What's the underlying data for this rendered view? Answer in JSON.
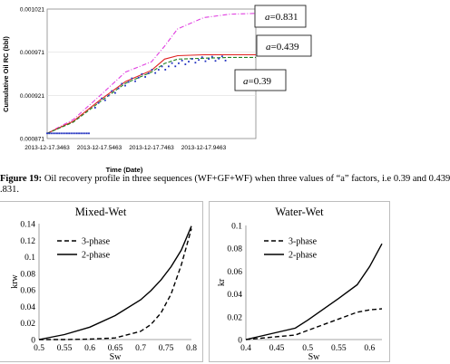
{
  "top_chart": {
    "ylabel": "Cumulative Oil RC (bbl)",
    "xlabel": "Time (Date)",
    "y_ticks": [
      "0.000871",
      "0.000921",
      "0.000971",
      "0.001021"
    ],
    "x_ticks": [
      "2013-12-17.3463",
      "2013-12-17.5463",
      "2013-12-17.7463",
      "2013-12-17.9463"
    ],
    "annotations": [
      {
        "prefix": "a",
        "value": "=0.831"
      },
      {
        "prefix": "a",
        "value": "=0.439"
      },
      {
        "prefix": "a",
        "value": "=0.39"
      }
    ],
    "colors": {
      "a0831": "#e040e0",
      "a0439": "#e02020",
      "a039": "#208020",
      "data": "#2030c0"
    }
  },
  "caption": {
    "label": "Figure 19:",
    "line1": " Oil recovery profile in three sequences (WF+GF+WF) when three values of “a” factors, i.e 0.39 and 0.439",
    "line2": ".831."
  },
  "chart_data": [
    {
      "type": "line",
      "title": "",
      "xlabel": "Time (Date)",
      "ylabel": "Cumulative Oil RC (bbl)",
      "x": [
        0.3463,
        0.4463,
        0.5463,
        0.6463,
        0.7463,
        0.7963,
        0.8463,
        0.9463,
        1.0463,
        1.1463
      ],
      "ylim": [
        0.000871,
        0.001021
      ],
      "series": [
        {
          "name": "a=0.831",
          "values": [
            0.000877,
            0.000893,
            0.00092,
            0.000948,
            0.00096,
            0.000978,
            0.000998,
            0.001011,
            0.001015,
            0.001016
          ]
        },
        {
          "name": "a=0.439",
          "values": [
            0.000877,
            0.000891,
            0.000915,
            0.000937,
            0.00095,
            0.000963,
            0.000967,
            0.000968,
            0.000968,
            0.000968
          ]
        },
        {
          "name": "a=0.39",
          "values": [
            0.000877,
            0.00089,
            0.000913,
            0.000935,
            0.000948,
            0.000958,
            0.000963,
            0.000964,
            0.000965,
            0.000965
          ]
        }
      ]
    },
    {
      "type": "line",
      "title": "Mixed-Wet",
      "xlabel": "Sw",
      "ylabel": "krw",
      "x": [
        0.5,
        0.55,
        0.6,
        0.65,
        0.7,
        0.72,
        0.74,
        0.76,
        0.78,
        0.8
      ],
      "xlim": [
        0.5,
        0.8
      ],
      "ylim": [
        0,
        0.14
      ],
      "x_ticks": [
        "0.5",
        "0.55",
        "0.6",
        "0.65",
        "0.7",
        "0.75",
        "0.8"
      ],
      "y_ticks": [
        "0",
        "0.02",
        "0.04",
        "0.06",
        "0.08",
        "0.1",
        "0.12",
        "0.14"
      ],
      "series": [
        {
          "name": "3-phase",
          "values": [
            0,
            0,
            0.0005,
            0.002,
            0.01,
            0.018,
            0.032,
            0.055,
            0.09,
            0.134
          ]
        },
        {
          "name": "2-phase",
          "values": [
            0,
            0.006,
            0.015,
            0.029,
            0.048,
            0.059,
            0.072,
            0.088,
            0.108,
            0.137
          ]
        }
      ],
      "legend": "top-left"
    },
    {
      "type": "line",
      "title": "Water-Wet",
      "xlabel": "Sw",
      "ylabel": "kr",
      "x": [
        0.4,
        0.48,
        0.5,
        0.55,
        0.58,
        0.6,
        0.62
      ],
      "xlim": [
        0.4,
        0.62
      ],
      "ylim": [
        0,
        0.1
      ],
      "x_ticks": [
        "0.4",
        "0.45",
        "0.5",
        "0.55",
        "0.6"
      ],
      "y_ticks": [
        "0",
        "0.02",
        "0.04",
        "0.06",
        "0.08",
        "0.1"
      ],
      "series": [
        {
          "name": "3-phase",
          "values": [
            0,
            0.004,
            0.008,
            0.018,
            0.024,
            0.026,
            0.027
          ]
        },
        {
          "name": "2-phase",
          "values": [
            0,
            0.01,
            0.017,
            0.036,
            0.048,
            0.064,
            0.084
          ]
        }
      ],
      "legend": "top-left"
    }
  ]
}
